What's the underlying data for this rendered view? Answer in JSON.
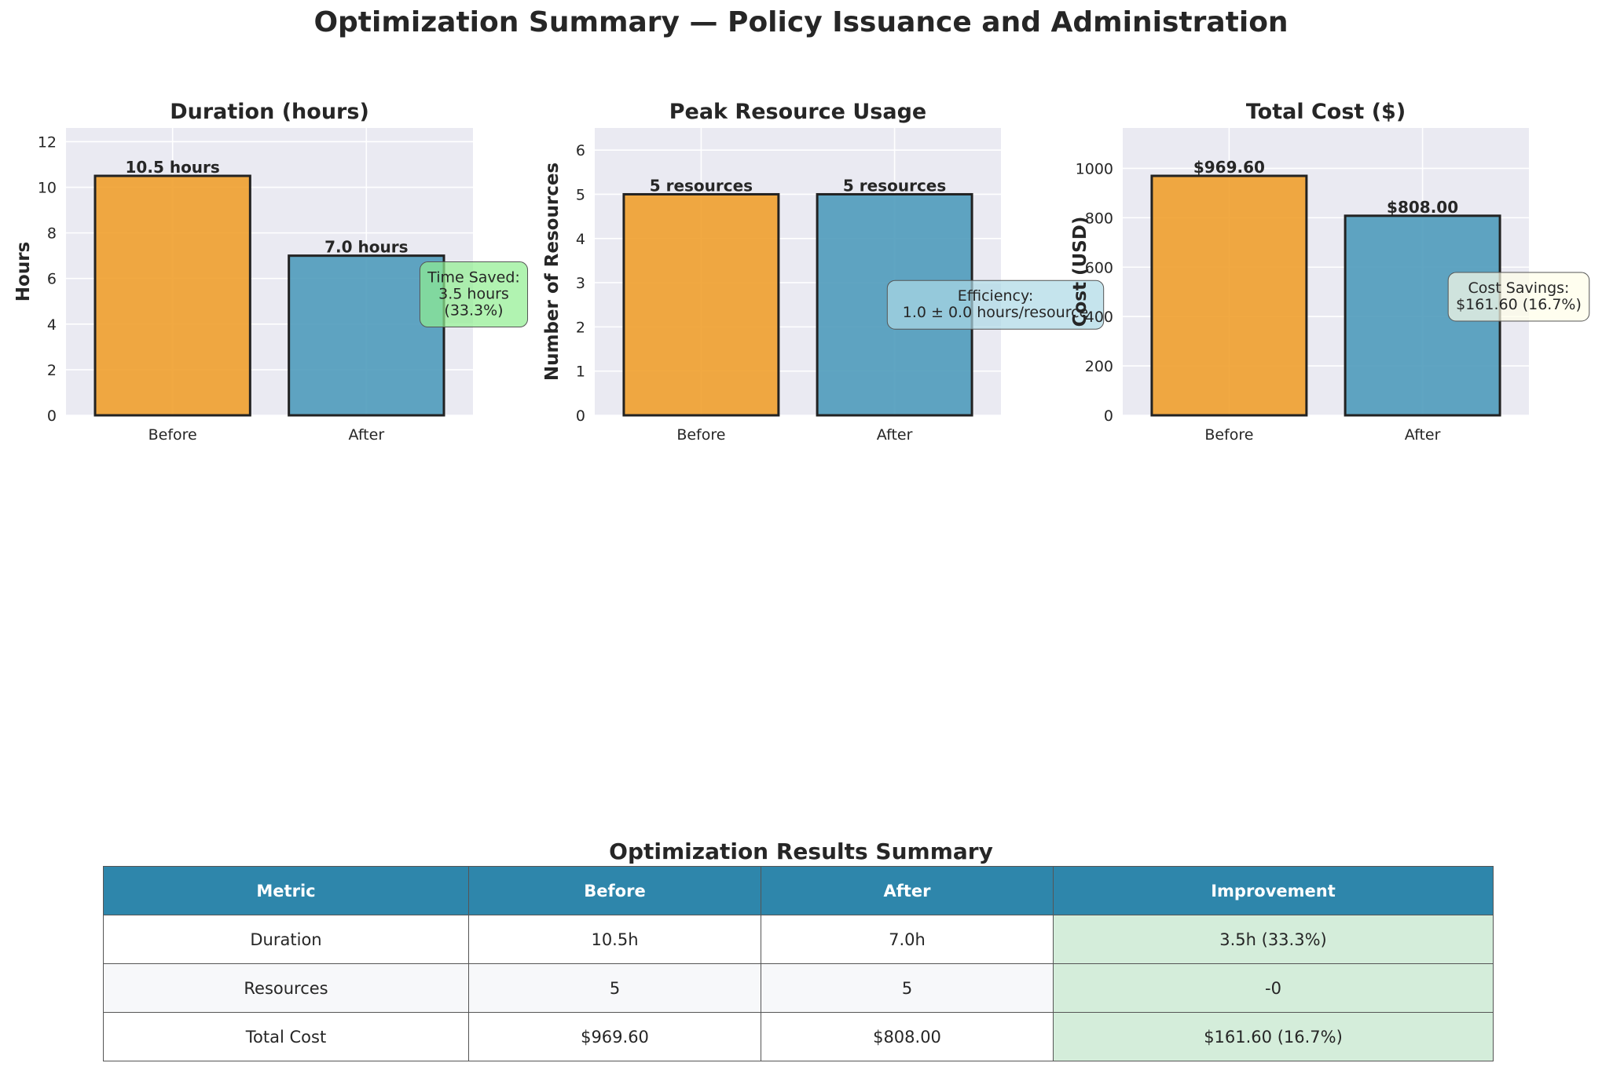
{
  "title": "Optimization Summary — Policy Issuance and Administration",
  "colors": {
    "before": "#f0a02e",
    "after": "#4f9bbb",
    "axes_bg": "#eaeaf2",
    "grid": "#ffffff",
    "edge": "#222222",
    "time_box": "#90ee90",
    "eff_box": "#add8e6",
    "cost_box": "#fffde8",
    "header": "#2e86ab",
    "improve": "#d4edda"
  },
  "chart_data": [
    {
      "type": "bar",
      "title": "Duration (hours)",
      "xlabel": "",
      "ylabel": "Hours",
      "categories": [
        "Before",
        "After"
      ],
      "values": [
        10.5,
        7.0
      ],
      "bar_labels": [
        "10.5 hours",
        "7.0 hours"
      ],
      "ylim": [
        0,
        12.6
      ],
      "yticks": [
        0,
        2,
        4,
        6,
        8,
        10,
        12
      ],
      "ytick_labels": [
        "0",
        "2",
        "4",
        "6",
        "8",
        "10",
        "12"
      ],
      "grid": true,
      "annotation": {
        "lines": [
          "Time Saved:",
          "3.5 hours",
          "(33.3%)"
        ],
        "y": 5.3
      }
    },
    {
      "type": "bar",
      "title": "Peak Resource Usage",
      "xlabel": "",
      "ylabel": "Number of Resources",
      "categories": [
        "Before",
        "After"
      ],
      "values": [
        5,
        5
      ],
      "bar_labels": [
        "5 resources",
        "5 resources"
      ],
      "ylim": [
        0,
        6.5
      ],
      "yticks": [
        0,
        1,
        2,
        3,
        4,
        5,
        6
      ],
      "ytick_labels": [
        "0",
        "1",
        "2",
        "3",
        "4",
        "5",
        "6"
      ],
      "grid": true,
      "annotation": {
        "lines": [
          "Efficiency:",
          "1.0 ± 0.0 hours/resource"
        ],
        "y": 2.5
      }
    },
    {
      "type": "bar",
      "title": "Total Cost ($)",
      "xlabel": "",
      "ylabel": "Cost (USD)",
      "categories": [
        "Before",
        "After"
      ],
      "values": [
        969.6,
        808.0
      ],
      "bar_labels": [
        "$969.60",
        "$808.00"
      ],
      "ylim": [
        0,
        1163.5
      ],
      "yticks": [
        0,
        200,
        400,
        600,
        800,
        1000
      ],
      "ytick_labels": [
        "0",
        "200",
        "400",
        "600",
        "800",
        "1000"
      ],
      "grid": true,
      "annotation": {
        "lines": [
          "Cost Savings:",
          "$161.60 (16.7%)"
        ],
        "y": 480
      }
    }
  ],
  "table": {
    "title": "Optimization Results Summary",
    "headers": [
      "Metric",
      "Before",
      "After",
      "Improvement"
    ],
    "rows": [
      [
        "Duration",
        "10.5h",
        "7.0h",
        "3.5h (33.3%)"
      ],
      [
        "Resources",
        "5",
        "5",
        "-0"
      ],
      [
        "Total Cost",
        "$969.60",
        "$808.00",
        "$161.60 (16.7%)"
      ]
    ]
  }
}
